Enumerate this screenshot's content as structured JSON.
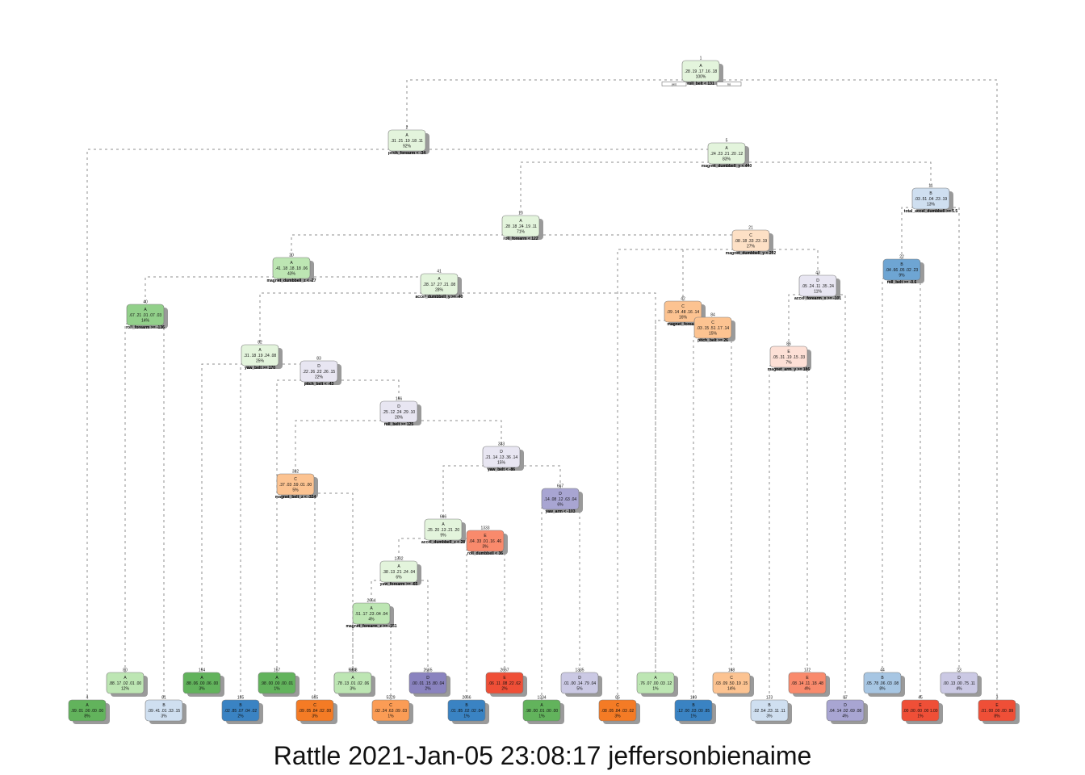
{
  "caption": "Rattle 2021-Jan-05 23:08:17 jeffersonbienaime",
  "root_labels": {
    "yes": "yes",
    "no": "no"
  },
  "colors": {
    "A": [
      "#e3f4dc",
      "#bde6b3",
      "#92d08a",
      "#62b35c"
    ],
    "B": [
      "#cfdff0",
      "#a7c6e3",
      "#6ea5d3",
      "#3a83c3"
    ],
    "C": [
      "#fde0c5",
      "#fcc391",
      "#fb9c55",
      "#f47b25"
    ],
    "D": [
      "#e8e6f2",
      "#cbc9e4",
      "#a8a5d2",
      "#8a83bf"
    ],
    "E": [
      "#fde0d6",
      "#fcbaa1",
      "#f98a6c",
      "#ef4f37"
    ],
    "edge": "#8f8f8f",
    "border": "#7a7a7a"
  },
  "nodes": [
    {
      "id": "1",
      "cls": "A",
      "shade": 0,
      "probs": ".28 .19 .17 .16 .18",
      "pct": "100%",
      "split": "roll_belt < 131"
    },
    {
      "id": "2",
      "cls": "A",
      "shade": 0,
      "probs": ".31 .21 .19 .18 .11",
      "pct": "92%",
      "split": "pitch_forearm < -34"
    },
    {
      "id": "4",
      "cls": "A",
      "shade": 3,
      "probs": ".99 .01 .00 .00 .00",
      "pct": "8%",
      "split": ""
    },
    {
      "id": "5",
      "cls": "A",
      "shade": 0,
      "probs": ".24 .23 .21 .20 .12",
      "pct": "83%",
      "split": "magnet_dumbbell_y < 440"
    },
    {
      "id": "10",
      "cls": "A",
      "shade": 0,
      "probs": ".28 .18 .24 .19 .11",
      "pct": "71%",
      "split": "roll_forearm < 122"
    },
    {
      "id": "11",
      "cls": "B",
      "shade": 0,
      "probs": ".03 .51 .04 .23 .19",
      "pct": "13%",
      "split": "total_accel_dumbbell >= 5.5"
    },
    {
      "id": "20",
      "cls": "A",
      "shade": 1,
      "probs": ".41 .18 .18 .18 .06",
      "pct": "43%",
      "split": "magnet_dumbbell_z < -27"
    },
    {
      "id": "21",
      "cls": "C",
      "shade": 0,
      "probs": ".08 .18 .33 .23 .19",
      "pct": "27%",
      "split": "magnet_dumbbell_y < 292"
    },
    {
      "id": "22",
      "cls": "B",
      "shade": 2,
      "probs": ".04 .66 .05 .02 .23",
      "pct": "9%",
      "split": "roll_belt >= -0.6"
    },
    {
      "id": "23",
      "cls": "D",
      "shade": 1,
      "probs": ".00 .13 .00 .75 .11",
      "pct": "4%",
      "split": ""
    },
    {
      "id": "40",
      "cls": "A",
      "shade": 2,
      "probs": ".67 .21 .01 .07 .03",
      "pct": "14%",
      "split": "roll_forearm >= -136"
    },
    {
      "id": "41",
      "cls": "A",
      "shade": 0,
      "probs": ".28 .17 .27 .21 .08",
      "pct": "28%",
      "split": "accel_dumbbell_y >= -40"
    },
    {
      "id": "42",
      "cls": "C",
      "shade": 1,
      "probs": ".09 .14 .48 .16 .14",
      "pct": "16%",
      "split": "magnet_forearm"
    },
    {
      "id": "43",
      "cls": "D",
      "shade": 0,
      "probs": ".05 .24 .11 .35 .24",
      "pct": "11%",
      "split": "accel_forearm_x >= -101"
    },
    {
      "id": "44",
      "cls": "B",
      "shade": 1,
      "probs": ".05 .78 .06 .03 .08",
      "pct": "8%",
      "split": ""
    },
    {
      "id": "45",
      "cls": "E",
      "shade": 3,
      "probs": ".00 .00 .00 .00 1.00",
      "pct": "1%",
      "split": ""
    },
    {
      "id": "80",
      "cls": "A",
      "shade": 1,
      "probs": ".88 .17 .02 .01 .00",
      "pct": "12%",
      "split": ""
    },
    {
      "id": "81",
      "cls": "B",
      "shade": 0,
      "probs": ".09 .41 .01 .33 .15",
      "pct": "3%",
      "split": ""
    },
    {
      "id": "82",
      "cls": "A",
      "shade": 0,
      "probs": ".31 .18 .19 .24 .08",
      "pct": "25%",
      "split": "yaw_belt >= 170"
    },
    {
      "id": "83",
      "cls": "D",
      "shade": 0,
      "probs": ".22 .26 .22 .26 .15",
      "pct": "22%",
      "split": "pitch_belt < -43"
    },
    {
      "id": "84",
      "cls": "C",
      "shade": 1,
      "probs": ".03 .15 .51 .17 .14",
      "pct": "15%",
      "split": "pitch_belt >= 26"
    },
    {
      "id": "85",
      "cls": "C",
      "shade": 3,
      "probs": ".08 .05 .84 .03 .02",
      "pct": "3%",
      "split": ""
    },
    {
      "id": "86",
      "cls": "E",
      "shade": 0,
      "probs": ".05 .31 .19 .15 .33",
      "pct": "7%",
      "split": "magnet_arm_y >= 186"
    },
    {
      "id": "87",
      "cls": "D",
      "shade": 2,
      "probs": ".04 .14 .02 .69 .08",
      "pct": "4%",
      "split": ""
    },
    {
      "id": "164",
      "cls": "A",
      "shade": 3,
      "probs": ".88 .06 .00 .06 .00",
      "pct": "3%",
      "split": ""
    },
    {
      "id": "165",
      "cls": "B",
      "shade": 3,
      "probs": ".02 .85 .07 .04 .02",
      "pct": "2%",
      "split": ""
    },
    {
      "id": "166",
      "cls": "D",
      "shade": 0,
      "probs": ".25 .12 .24 .29 .10",
      "pct": "20%",
      "split": "roll_belt >= 125"
    },
    {
      "id": "167",
      "cls": "A",
      "shade": 3,
      "probs": ".98 .00 .00 .00 .01",
      "pct": "1%",
      "split": ""
    },
    {
      "id": "168",
      "cls": "C",
      "shade": 1,
      "probs": ".03 .09 .50 .19 .15",
      "pct": "14%",
      "split": ""
    },
    {
      "id": "169",
      "cls": "B",
      "shade": 3,
      "probs": ".12 .00 .03 .00 .85",
      "pct": "1%",
      "split": ""
    },
    {
      "id": "172",
      "cls": "E",
      "shade": 2,
      "probs": ".08 .14 .11 .18 .48",
      "pct": "4%",
      "split": ""
    },
    {
      "id": "173",
      "cls": "B",
      "shade": 0,
      "probs": ".02 .54 .23 .11 .11",
      "pct": "3%",
      "split": ""
    },
    {
      "id": "332",
      "cls": "C",
      "shade": 1,
      "probs": ".37 .03 .59 .01 .00",
      "pct": "5%",
      "split": "magnet_belt_z < -324"
    },
    {
      "id": "333",
      "cls": "D",
      "shade": 0,
      "probs": ".21 .14 .13 .36 .14",
      "pct": "15%",
      "split": "yaw_belt < -86"
    },
    {
      "id": "664",
      "cls": "A",
      "shade": 3,
      "probs": ".98 .00 .00 .00 .01",
      "pct": "1%",
      "split": ""
    },
    {
      "id": "665",
      "cls": "C",
      "shade": 3,
      "probs": ".09 .05 .84 .02 .00",
      "pct": "3%",
      "split": ""
    },
    {
      "id": "666",
      "cls": "A",
      "shade": 0,
      "probs": ".25 .20 .13 .21 .20",
      "pct": "9%",
      "split": "accel_dumbbell_z < 28"
    },
    {
      "id": "667",
      "cls": "D",
      "shade": 2,
      "probs": ".14 .08 .12 .63 .04",
      "pct": "6%",
      "split": "yaw_arm < -103"
    },
    {
      "id": "1332",
      "cls": "A",
      "shade": 0,
      "probs": ".38 .13 .21 .24 .04",
      "pct": "6%",
      "split": "yaw_forearm >= -65"
    },
    {
      "id": "1333",
      "cls": "E",
      "shade": 2,
      "probs": ".04 .33 .01 .16 .46",
      "pct": "3%",
      "split": "roll_dumbbell < 36"
    },
    {
      "id": "1334",
      "cls": "A",
      "shade": 3,
      "probs": ".98 .00 .01 .00 .00",
      "pct": "1%",
      "split": ""
    },
    {
      "id": "1335",
      "cls": "D",
      "shade": 1,
      "probs": ".01 .00 .14 .79 .04",
      "pct": "5%",
      "split": ""
    },
    {
      "id": "2664",
      "cls": "A",
      "shade": 1,
      "probs": ".51 .17 .23 .04 .04",
      "pct": "4%",
      "split": "magnet_forearm_z >= -151"
    },
    {
      "id": "2665",
      "cls": "D",
      "shade": 3,
      "probs": ".00 .01 .15 .80 .04",
      "pct": "2%",
      "split": ""
    },
    {
      "id": "2666",
      "cls": "B",
      "shade": 3,
      "probs": ".01 .85 .02 .02 .04",
      "pct": "1%",
      "split": ""
    },
    {
      "id": "2667",
      "cls": "E",
      "shade": 3,
      "probs": ".06 .11 .08 .22 .62",
      "pct": "2%",
      "split": ""
    },
    {
      "id": "5328",
      "cls": "A",
      "shade": 1,
      "probs": ".78 .13 .01 .02 .06",
      "pct": "3%",
      "split": ""
    },
    {
      "id": "5329",
      "cls": "C",
      "shade": 2,
      "probs": ".02 .24 .63 .09 .03",
      "pct": "1%",
      "split": ""
    },
    {
      "id": "3",
      "cls": "E",
      "shade": 3,
      "probs": ".01 .00 .00 .00 .99",
      "pct": "8%",
      "split": ""
    },
    {
      "id": "1x",
      "cls": "A",
      "shade": 1,
      "probs": ".76 .07 .00 .03 .12",
      "pct": "1%",
      "split": ""
    }
  ]
}
